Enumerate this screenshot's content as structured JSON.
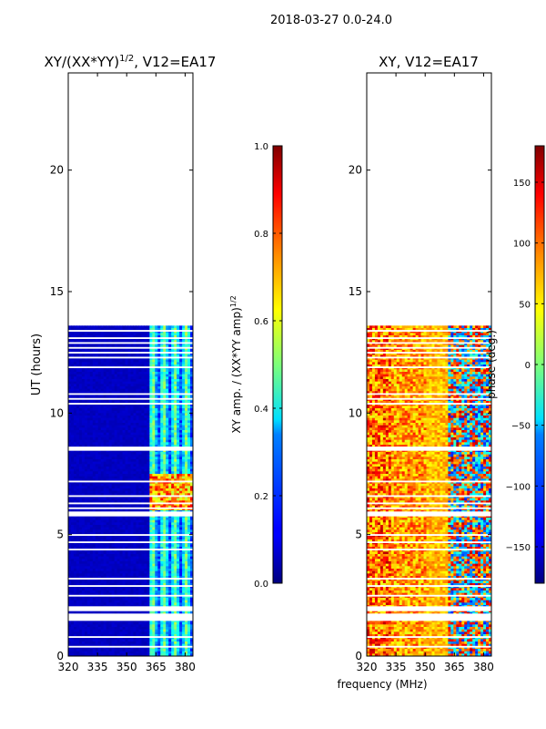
{
  "suptitle": "2018-03-27 0.0-24.0",
  "shared_xlabel": "frequency (MHz)",
  "chart_data": [
    {
      "type": "heatmap",
      "title_main": "XY/(XX*YY)",
      "title_sup": "1/2",
      "title_tail": ", V12=EA17",
      "ylabel": "UT (hours)",
      "xlim": [
        320,
        384
      ],
      "ylim": [
        0,
        24
      ],
      "x_ticks": [
        320,
        335,
        350,
        365,
        380
      ],
      "y_ticks": [
        0,
        5,
        10,
        15,
        20
      ],
      "data_ut_range": [
        0,
        13.6
      ],
      "gap_bands_ut": [
        [
          0.35,
          0.42
        ],
        [
          0.75,
          0.82
        ],
        [
          1.45,
          1.75
        ],
        [
          1.85,
          2.05
        ],
        [
          2.45,
          2.52
        ],
        [
          2.85,
          2.92
        ],
        [
          3.15,
          3.22
        ],
        [
          4.35,
          4.42
        ],
        [
          4.65,
          4.72
        ],
        [
          4.95,
          5.02
        ],
        [
          5.75,
          5.95
        ],
        [
          6.05,
          6.12
        ],
        [
          6.25,
          6.32
        ],
        [
          6.55,
          6.62
        ],
        [
          7.15,
          7.22
        ],
        [
          8.45,
          8.62
        ],
        [
          10.35,
          10.42
        ],
        [
          10.55,
          10.62
        ],
        [
          10.75,
          10.82
        ],
        [
          11.85,
          11.92
        ],
        [
          12.25,
          12.32
        ],
        [
          12.45,
          12.52
        ],
        [
          12.65,
          12.72
        ],
        [
          12.85,
          12.92
        ],
        [
          13.05,
          13.12
        ],
        [
          13.35,
          13.42
        ]
      ],
      "colorbar": {
        "ticks": [
          "0.0",
          "0.2",
          "0.4",
          "0.6",
          "0.8",
          "1.0"
        ],
        "range": [
          0,
          1
        ],
        "label_main": "XY amp. / (XX*YY amp)",
        "label_sup": "1/2"
      }
    },
    {
      "type": "heatmap",
      "title": "XY, V12=EA17",
      "xlim": [
        320,
        384
      ],
      "ylim": [
        0,
        24
      ],
      "x_ticks": [
        320,
        335,
        350,
        365,
        380
      ],
      "y_ticks": [
        0,
        5,
        10,
        15,
        20
      ],
      "data_ut_range": [
        0,
        13.6
      ],
      "colorbar": {
        "ticks": [
          "150",
          "100",
          "50",
          "0",
          "−50",
          "−100",
          "−150"
        ],
        "tick_values": [
          150,
          100,
          50,
          0,
          -50,
          -100,
          -150
        ],
        "range": [
          -180,
          180
        ],
        "label": "phase (deg.)"
      }
    }
  ]
}
